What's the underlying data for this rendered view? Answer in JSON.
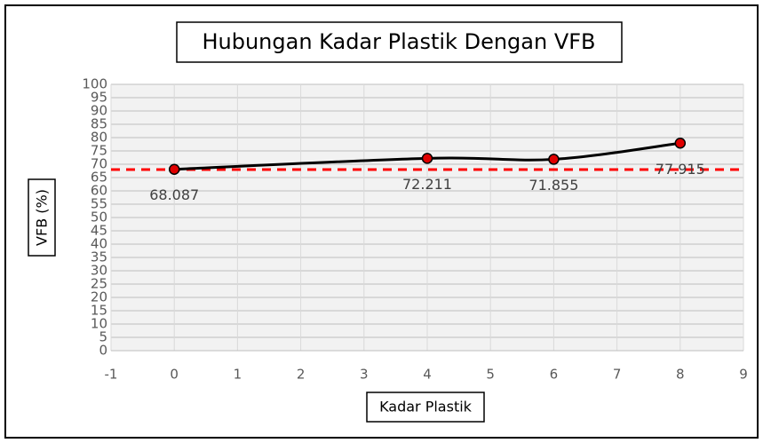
{
  "chart_data": {
    "type": "line",
    "title": "Hubungan Kadar Plastik Dengan VFB",
    "x_label": "Kadar Plastik",
    "y_label": "VFB (%)",
    "x": [
      0,
      4,
      6,
      8
    ],
    "series": [
      {
        "color": "#000000",
        "marker_color": "#e00000",
        "values": [
          68.087,
          72.211,
          71.855,
          77.915
        ]
      }
    ],
    "reference_line": {
      "value": 68,
      "color": "#ff0000"
    },
    "xlim": [
      -1,
      9
    ],
    "xticks": [
      -1,
      0,
      1,
      2,
      3,
      4,
      5,
      6,
      7,
      8,
      9
    ],
    "ylim": [
      0,
      100
    ],
    "yticks": [
      0,
      5,
      10,
      15,
      20,
      25,
      30,
      35,
      40,
      45,
      50,
      55,
      60,
      65,
      70,
      75,
      80,
      85,
      90,
      95,
      100
    ],
    "grid": true,
    "smooth": true
  }
}
